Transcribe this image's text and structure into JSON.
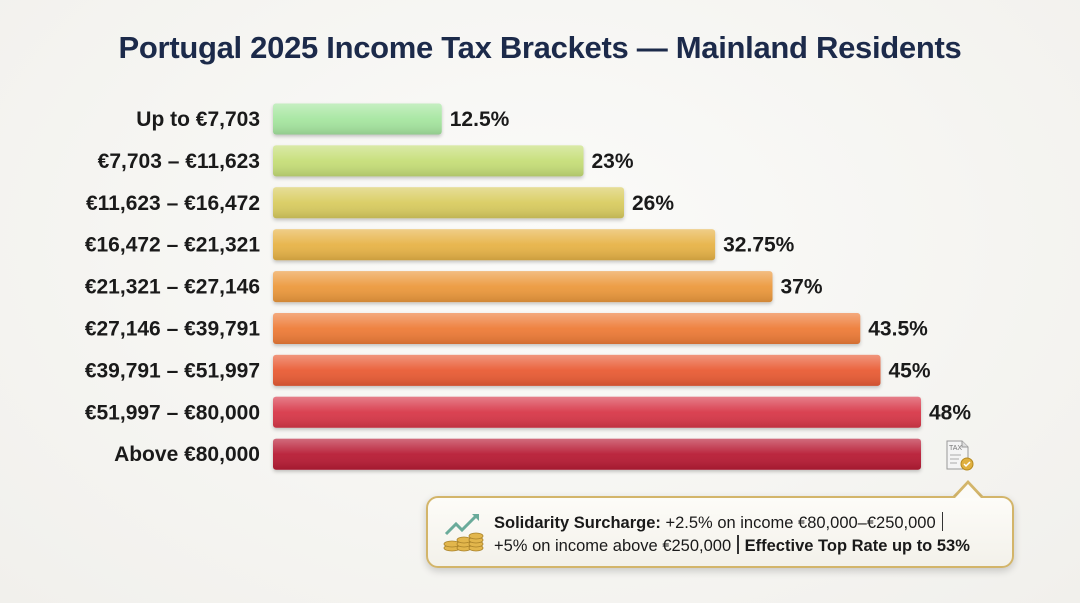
{
  "chart_data": {
    "type": "bar",
    "orientation": "horizontal",
    "title": "Portugal 2025 Income Tax Brackets — Mainland Residents",
    "categories": [
      "Up to €7,703",
      "€7,703 – €11,623",
      "€11,623 – €16,472",
      "€16,472 – €21,321",
      "€21,321 – €27,146",
      "€27,146 – €39,791",
      "€39,791 – €51,997",
      "€51,997 – €80,000",
      "Above €80,000"
    ],
    "values": [
      12.5,
      23,
      26,
      32.75,
      37,
      43.5,
      45,
      48,
      48
    ],
    "data_labels": [
      "12.5%",
      "23%",
      "26%",
      "32.75%",
      "37%",
      "43.5%",
      "45%",
      "48%",
      ""
    ],
    "colors": [
      "#a6e6a0",
      "#c6de78",
      "#d9cc60",
      "#e7b347",
      "#ec993d",
      "#ee7b37",
      "#e95b34",
      "#d8394a",
      "#b81c36"
    ],
    "xlabel": "",
    "ylabel": "",
    "xlim": [
      0,
      48
    ],
    "grid": false,
    "legend": "none"
  },
  "callout": {
    "label": "Solidarity Surcharge:",
    "line1": "+2.5% on income €80,000–€250,000",
    "line2": "+5% on income above €250,000",
    "emphasis": "Effective Top Rate up to 53%",
    "icon": "coins-growth-icon",
    "border_color": "#d3b56a"
  },
  "tax_icon": {
    "icon": "tax-document-icon",
    "text": "TAX"
  }
}
